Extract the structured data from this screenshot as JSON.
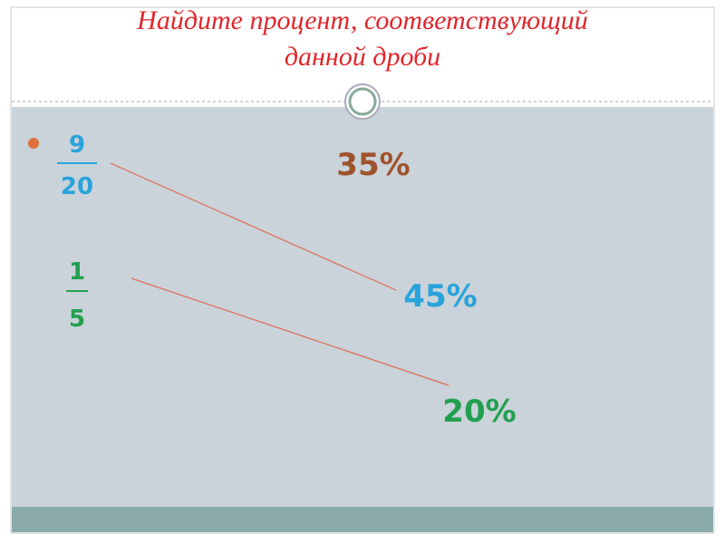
{
  "title": [
    "Найдите процент, соответствующий",
    "данной дроби"
  ],
  "fractions": [
    {
      "numerator": "9",
      "denominator": "20"
    },
    {
      "numerator": "1",
      "denominator": "5"
    }
  ],
  "percents": [
    "35%",
    "45%",
    "20%"
  ]
}
